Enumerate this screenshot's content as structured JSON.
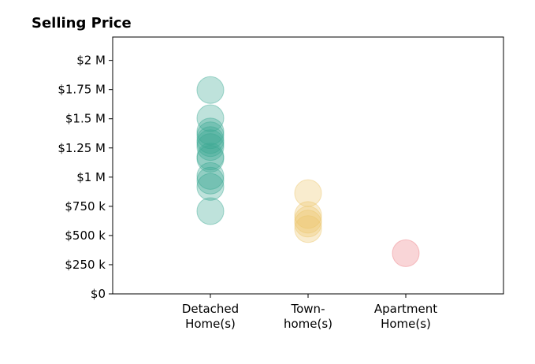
{
  "chart_data": {
    "type": "strip",
    "title": "Selling Price",
    "categories": [
      "Detached\nHome(s)",
      "Town-\nhome(s)",
      "Apartment\nHome(s)"
    ],
    "colors": [
      "#3aa893",
      "#ecc56a",
      "#ee7f86"
    ],
    "values": [
      [
        1.746,
        1.505,
        1.391,
        1.358,
        1.318,
        1.291,
        1.258,
        1.177,
        1.157,
        1.01,
        0.97,
        0.916,
        0.709
      ],
      [
        0.863,
        0.676,
        0.635,
        0.602,
        0.555
      ],
      [
        0.348
      ]
    ],
    "ylim": [
      0,
      2.2
    ],
    "yticks": [
      {
        "value": 0,
        "label": "$0"
      },
      {
        "value": 0.25,
        "label": "$250 k"
      },
      {
        "value": 0.5,
        "label": "$500 k"
      },
      {
        "value": 0.75,
        "label": "$750 k"
      },
      {
        "value": 1,
        "label": "$1 M"
      },
      {
        "value": 1.25,
        "label": "$1.25 M"
      },
      {
        "value": 1.5,
        "label": "$1.5 M"
      },
      {
        "value": 1.75,
        "label": "$1.75 M"
      },
      {
        "value": 2,
        "label": "$2 M"
      }
    ]
  }
}
